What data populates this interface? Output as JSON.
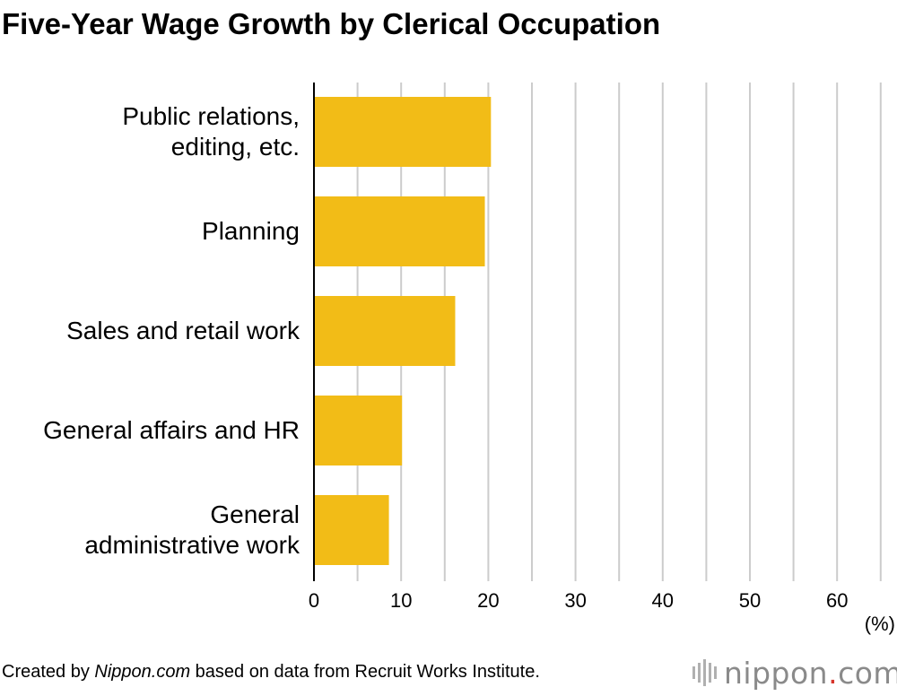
{
  "title": "Five-Year Wage Growth by Clerical Occupation",
  "chart_data": {
    "type": "bar",
    "orientation": "horizontal",
    "title": "Five-Year Wage Growth by Clerical Occupation",
    "categories": [
      [
        "Public relations,",
        "editing, etc."
      ],
      [
        "Planning"
      ],
      [
        "Sales and retail work"
      ],
      [
        "General affairs and HR"
      ],
      [
        "General",
        "administrative work"
      ]
    ],
    "values": [
      20.3,
      19.6,
      16.2,
      10.1,
      8.6
    ],
    "unit_label": "(%)",
    "xlim": [
      0,
      65
    ],
    "ticks": [
      0,
      10,
      20,
      30,
      40,
      50,
      60
    ],
    "grid": true,
    "bar_color": "#f2bc17",
    "grid_color": "#cccccc"
  },
  "footer": {
    "prefix": "Created by ",
    "source_name": "Nippon.com",
    "suffix": " based on data from Recruit Works Institute."
  },
  "brand": {
    "name": "nippon",
    "dot": ".",
    "tld": "com",
    "icon": "nippon-logo-bars-icon"
  }
}
